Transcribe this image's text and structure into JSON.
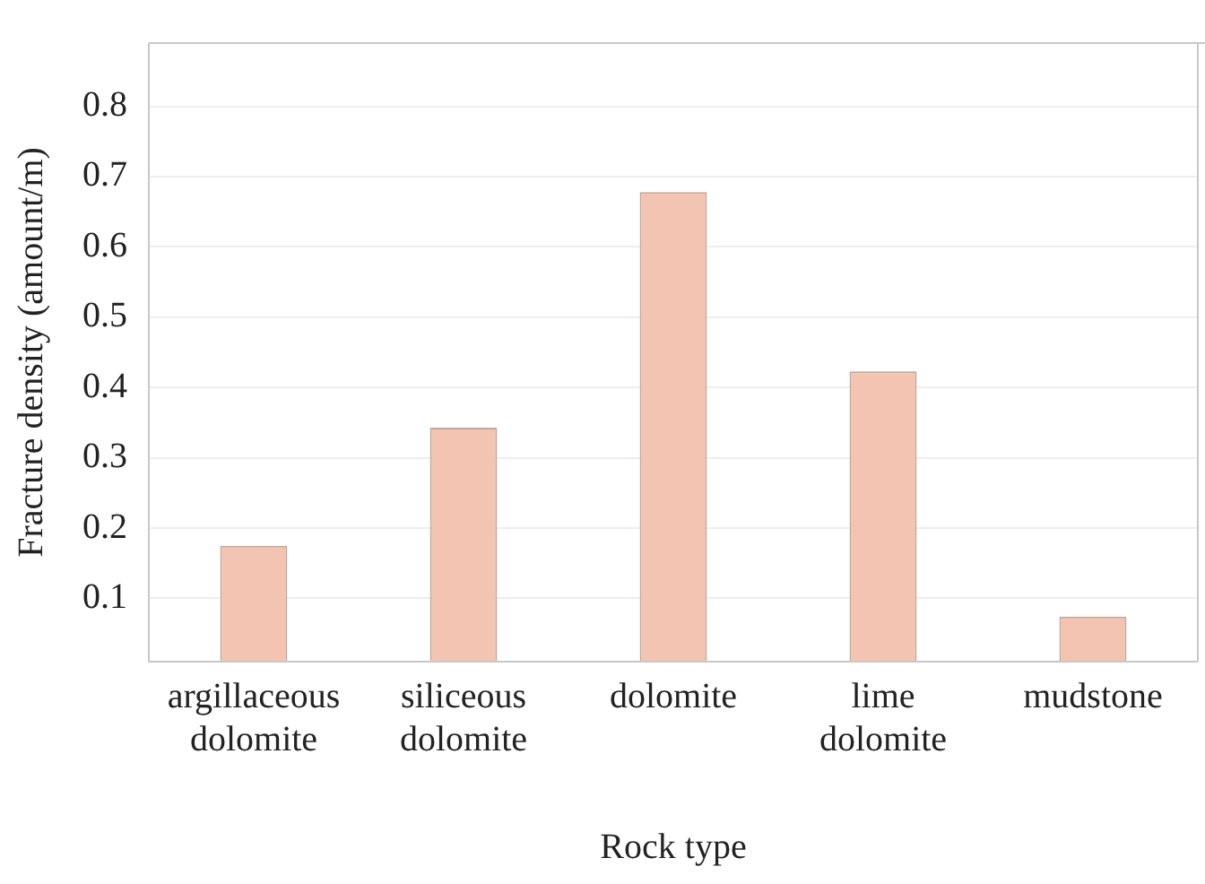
{
  "chart_data": {
    "type": "bar",
    "xlabel": "Rock type",
    "ylabel": "Fracture density (amount/m)",
    "categories": [
      "argillaceous dolomite",
      "siliceous dolomite",
      "dolomite",
      "lime dolomite",
      "mudstone"
    ],
    "values": [
      0.175,
      0.343,
      0.678,
      0.423,
      0.074
    ],
    "color": "#f4c4b3",
    "ylim": [
      0.01,
      0.89
    ],
    "yticks": [
      0.1,
      0.2,
      0.3,
      0.4,
      0.5,
      0.6,
      0.7,
      0.8
    ],
    "grid": "y",
    "legend": false
  }
}
